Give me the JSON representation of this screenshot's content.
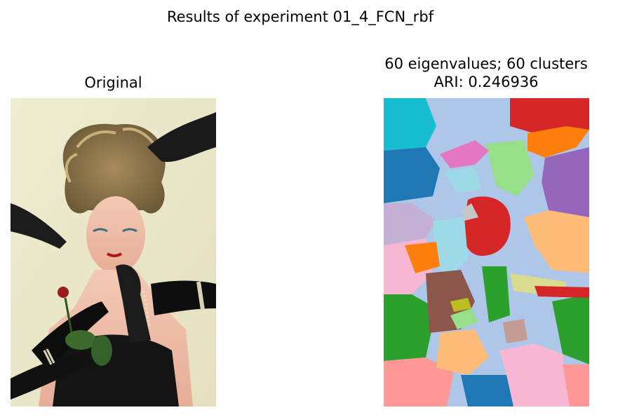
{
  "figure": {
    "suptitle": "Results of experiment 01_4_FCN_rbf"
  },
  "left_panel": {
    "title": "Original",
    "image": "photo-woman-with-teased-hair-surrounded-by-black-lace-gloved-hands"
  },
  "right_panel": {
    "title_line1": "60 eigenvalues; 60 clusters",
    "title_line2": "ARI: 0.246936",
    "image": "spectral-clustering-segmentation-map",
    "palette": [
      "#17becf",
      "#aec7e8",
      "#d62728",
      "#1f77b4",
      "#9467bd",
      "#ff7f0e",
      "#98df8a",
      "#ffbb78",
      "#c5b0d5",
      "#e377c2",
      "#9edae5",
      "#f7b6d2",
      "#2ca02c",
      "#8c564b",
      "#ff9896",
      "#c49c94",
      "#bcbd22",
      "#dbdb8d",
      "#c7c7c7"
    ]
  }
}
